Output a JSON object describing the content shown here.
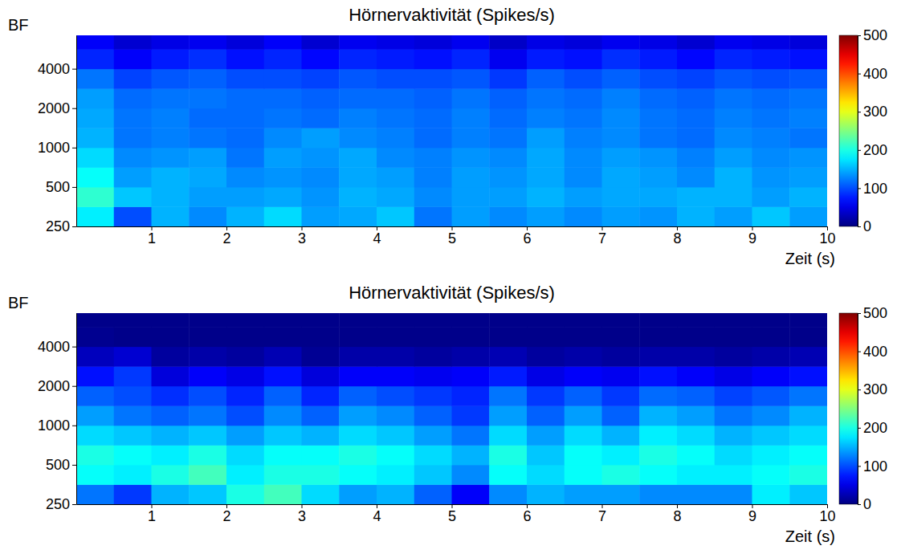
{
  "chart_data": [
    {
      "type": "heatmap",
      "title": "Hörnervaktivität (Spikes/s)",
      "xlabel": "Zeit (s)",
      "ylabel": "BF",
      "xlim": [
        0,
        10
      ],
      "xticks": [
        1,
        2,
        3,
        4,
        5,
        6,
        7,
        8,
        9,
        10
      ],
      "ylim": [
        250,
        7200
      ],
      "yticks": [
        250,
        500,
        1000,
        2000,
        4000
      ],
      "log": "y",
      "color": "jet",
      "xbins": [
        0,
        0.5,
        1,
        1.5,
        2,
        2.5,
        3,
        3.5,
        4,
        4.5,
        5,
        5.5,
        6,
        6.5,
        7,
        7.5,
        8,
        8.5,
        9,
        9.5,
        10
      ],
      "ybins": [
        250,
        354,
        500,
        707,
        1000,
        1414,
        2000,
        2828,
        4000,
        5657,
        7200
      ],
      "values": [
        [
          180,
          100,
          150,
          130,
          150,
          170,
          140,
          145,
          160,
          120,
          140,
          130,
          140,
          130,
          140,
          135,
          150,
          140,
          160,
          140
        ],
        [
          210,
          160,
          150,
          140,
          140,
          145,
          135,
          150,
          145,
          130,
          140,
          140,
          150,
          140,
          145,
          145,
          150,
          150,
          140,
          150
        ],
        [
          190,
          140,
          150,
          145,
          130,
          135,
          130,
          145,
          140,
          125,
          140,
          135,
          145,
          130,
          145,
          140,
          130,
          150,
          135,
          140
        ],
        [
          170,
          130,
          135,
          140,
          120,
          140,
          135,
          145,
          130,
          125,
          135,
          130,
          145,
          130,
          140,
          135,
          125,
          140,
          130,
          135
        ],
        [
          150,
          120,
          125,
          120,
          115,
          130,
          140,
          130,
          125,
          115,
          125,
          120,
          140,
          125,
          130,
          120,
          115,
          130,
          125,
          120
        ],
        [
          145,
          120,
          125,
          115,
          115,
          120,
          115,
          125,
          120,
          115,
          125,
          115,
          125,
          120,
          130,
          120,
          115,
          125,
          120,
          125
        ],
        [
          140,
          115,
          120,
          120,
          115,
          115,
          110,
          115,
          115,
          110,
          120,
          110,
          120,
          115,
          125,
          115,
          110,
          120,
          115,
          120
        ],
        [
          120,
          95,
          105,
          110,
          100,
          100,
          95,
          105,
          100,
          100,
          105,
          90,
          110,
          100,
          110,
          100,
          95,
          105,
          100,
          105
        ],
        [
          80,
          60,
          75,
          85,
          70,
          80,
          65,
          80,
          75,
          70,
          80,
          55,
          75,
          70,
          85,
          75,
          65,
          80,
          75,
          70
        ],
        [
          60,
          40,
          50,
          55,
          45,
          60,
          40,
          55,
          50,
          45,
          55,
          35,
          50,
          45,
          55,
          50,
          40,
          55,
          50,
          45
        ]
      ],
      "colorbar_range": [
        0,
        500
      ],
      "colorbar_ticks": [
        0,
        100,
        200,
        300,
        400,
        500
      ]
    },
    {
      "type": "heatmap",
      "title": "Hörnervaktivität (Spikes/s)",
      "xlabel": "Zeit (s)",
      "ylabel": "BF",
      "xlim": [
        0,
        10
      ],
      "xticks": [
        1,
        2,
        3,
        4,
        5,
        6,
        7,
        8,
        9,
        10
      ],
      "ylim": [
        250,
        7200
      ],
      "yticks": [
        250,
        500,
        1000,
        2000,
        4000
      ],
      "log": "y",
      "color": "jet",
      "xbins": [
        0,
        0.5,
        1,
        1.5,
        2,
        2.5,
        3,
        3.5,
        4,
        4.5,
        5,
        5.5,
        6,
        6.5,
        7,
        7.5,
        8,
        8.5,
        9,
        9.5,
        10
      ],
      "ybins": [
        250,
        354,
        500,
        707,
        1000,
        1414,
        2000,
        2828,
        4000,
        5657,
        7200
      ],
      "values": [
        [
          120,
          90,
          150,
          160,
          200,
          220,
          170,
          140,
          150,
          110,
          60,
          130,
          150,
          140,
          140,
          130,
          130,
          130,
          180,
          160
        ],
        [
          190,
          180,
          200,
          220,
          180,
          200,
          200,
          190,
          180,
          160,
          130,
          190,
          170,
          190,
          200,
          190,
          180,
          180,
          190,
          200
        ],
        [
          200,
          190,
          180,
          200,
          170,
          190,
          190,
          200,
          190,
          170,
          150,
          200,
          160,
          190,
          180,
          200,
          190,
          170,
          180,
          190
        ],
        [
          170,
          160,
          150,
          160,
          140,
          160,
          150,
          170,
          160,
          140,
          120,
          170,
          140,
          170,
          150,
          180,
          170,
          150,
          160,
          170
        ],
        [
          140,
          120,
          110,
          120,
          100,
          130,
          110,
          140,
          130,
          110,
          90,
          140,
          110,
          140,
          110,
          150,
          140,
          120,
          130,
          150
        ],
        [
          110,
          100,
          85,
          100,
          80,
          110,
          80,
          110,
          100,
          90,
          80,
          120,
          90,
          110,
          90,
          115,
          110,
          95,
          105,
          120
        ],
        [
          70,
          90,
          45,
          60,
          50,
          70,
          45,
          60,
          60,
          55,
          60,
          75,
          50,
          60,
          55,
          70,
          60,
          50,
          60,
          70
        ],
        [
          30,
          40,
          15,
          20,
          15,
          25,
          10,
          20,
          20,
          15,
          20,
          25,
          15,
          20,
          15,
          20,
          20,
          15,
          20,
          25
        ],
        [
          8,
          5,
          5,
          5,
          5,
          5,
          5,
          5,
          5,
          5,
          5,
          5,
          5,
          5,
          5,
          5,
          5,
          5,
          5,
          5
        ],
        [
          5,
          5,
          5,
          5,
          5,
          5,
          5,
          5,
          5,
          5,
          5,
          5,
          5,
          5,
          5,
          5,
          5,
          5,
          5,
          5
        ]
      ],
      "colorbar_range": [
        0,
        500
      ],
      "colorbar_ticks": [
        0,
        100,
        200,
        300,
        400,
        500
      ]
    }
  ]
}
